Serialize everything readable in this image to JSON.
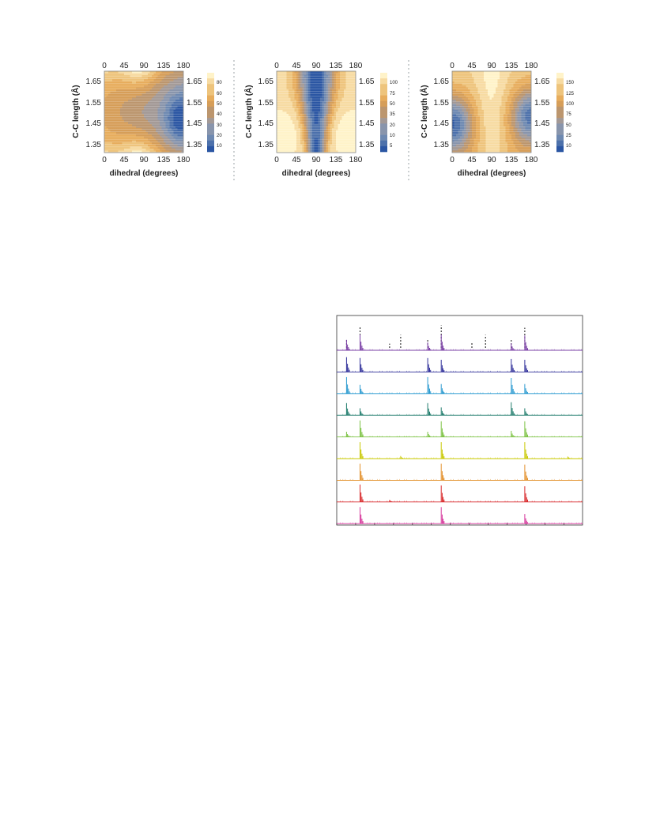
{
  "chart_data": [
    {
      "type": "heatmap",
      "xlabel": "dihedral (degrees)",
      "ylabel": "C-C length (Å)",
      "x_ticks": [
        "0",
        "45",
        "90",
        "135",
        "180"
      ],
      "y_ticks": [
        "1.35",
        "1.45",
        "1.55",
        "1.65"
      ],
      "xlim": [
        0,
        180
      ],
      "ylim": [
        1.31,
        1.69
      ],
      "colorbar_ticks": [
        "80",
        "60",
        "50",
        "40",
        "30",
        "20",
        "10"
      ],
      "colorbar_range": [
        0,
        90
      ],
      "surface": "panel1"
    },
    {
      "type": "heatmap",
      "xlabel": "dihedral (degrees)",
      "ylabel": "C-C length (Å)",
      "x_ticks": [
        "0",
        "45",
        "90",
        "135",
        "180"
      ],
      "y_ticks": [
        "1.35",
        "1.45",
        "1.55",
        "1.65"
      ],
      "xlim": [
        0,
        180
      ],
      "ylim": [
        1.31,
        1.69
      ],
      "colorbar_ticks": [
        "100",
        "75",
        "50",
        "35",
        "20",
        "10",
        "5"
      ],
      "colorbar_range": [
        0,
        110
      ],
      "surface": "panel2"
    },
    {
      "type": "heatmap",
      "xlabel": "dihedral (degrees)",
      "ylabel": "C-C length (Å)",
      "x_ticks": [
        "0",
        "45",
        "90",
        "135",
        "180"
      ],
      "y_ticks": [
        "1.35",
        "1.45",
        "1.55",
        "1.65"
      ],
      "xlim": [
        0,
        180
      ],
      "ylim": [
        1.31,
        1.69
      ],
      "colorbar_ticks": [
        "150",
        "125",
        "100",
        "75",
        "50",
        "25",
        "10"
      ],
      "colorbar_range": [
        0,
        160
      ],
      "surface": "panel3"
    },
    {
      "type": "bar",
      "subtype": "stacked-stick-spectra",
      "n_traces": 9,
      "xlim": [
        0,
        100
      ],
      "reference_peaks": [
        {
          "x": 4.0,
          "h": 0.35
        },
        {
          "x": 9.5,
          "h": 0.9
        },
        {
          "x": 21.5,
          "h": 0.18
        },
        {
          "x": 26.0,
          "h": 0.55
        },
        {
          "x": 37.0,
          "h": 0.4
        },
        {
          "x": 42.5,
          "h": 0.95
        },
        {
          "x": 55.0,
          "h": 0.22
        },
        {
          "x": 60.5,
          "h": 0.55
        },
        {
          "x": 71.0,
          "h": 0.4
        },
        {
          "x": 76.5,
          "h": 0.85
        }
      ],
      "series": [
        {
          "color": "#7a3fa6",
          "peaks": [
            {
              "x": 4,
              "h": 0.6
            },
            {
              "x": 9.5,
              "h": 0.9
            },
            {
              "x": 37,
              "h": 0.45
            },
            {
              "x": 42.5,
              "h": 0.9
            },
            {
              "x": 71,
              "h": 0.4
            },
            {
              "x": 76.5,
              "h": 0.85
            }
          ]
        },
        {
          "color": "#2f2f9a",
          "peaks": [
            {
              "x": 4,
              "h": 0.85
            },
            {
              "x": 9.5,
              "h": 0.8
            },
            {
              "x": 37,
              "h": 0.8
            },
            {
              "x": 42.5,
              "h": 0.7
            },
            {
              "x": 71,
              "h": 0.75
            },
            {
              "x": 76.5,
              "h": 0.7
            }
          ]
        },
        {
          "color": "#2a9ad0",
          "peaks": [
            {
              "x": 4,
              "h": 0.95
            },
            {
              "x": 9.5,
              "h": 0.5
            },
            {
              "x": 37,
              "h": 0.95
            },
            {
              "x": 42.5,
              "h": 0.55
            },
            {
              "x": 71,
              "h": 0.9
            },
            {
              "x": 76.5,
              "h": 0.55
            }
          ]
        },
        {
          "color": "#1e7b6b",
          "peaks": [
            {
              "x": 4,
              "h": 0.7
            },
            {
              "x": 9.5,
              "h": 0.4
            },
            {
              "x": 37,
              "h": 0.7
            },
            {
              "x": 42.5,
              "h": 0.45
            },
            {
              "x": 71,
              "h": 0.75
            },
            {
              "x": 76.5,
              "h": 0.4
            }
          ]
        },
        {
          "color": "#7cc242",
          "peaks": [
            {
              "x": 4,
              "h": 0.3
            },
            {
              "x": 9.5,
              "h": 0.95
            },
            {
              "x": 37,
              "h": 0.3
            },
            {
              "x": 42.5,
              "h": 0.9
            },
            {
              "x": 71,
              "h": 0.35
            },
            {
              "x": 76.5,
              "h": 0.9
            }
          ]
        },
        {
          "color": "#c8c800",
          "peaks": [
            {
              "x": 9.5,
              "h": 0.95
            },
            {
              "x": 26,
              "h": 0.15
            },
            {
              "x": 42.5,
              "h": 0.95
            },
            {
              "x": 76.5,
              "h": 0.95
            },
            {
              "x": 94,
              "h": 0.12
            }
          ]
        },
        {
          "color": "#e3902a",
          "peaks": [
            {
              "x": 9.5,
              "h": 0.95
            },
            {
              "x": 42.5,
              "h": 0.95
            },
            {
              "x": 76.5,
              "h": 0.9
            }
          ]
        },
        {
          "color": "#d8282a",
          "peaks": [
            {
              "x": 9.5,
              "h": 1.0
            },
            {
              "x": 21.5,
              "h": 0.12
            },
            {
              "x": 42.5,
              "h": 0.95
            },
            {
              "x": 76.5,
              "h": 0.9
            }
          ]
        },
        {
          "color": "#d6359b",
          "peaks": [
            {
              "x": 9.5,
              "h": 0.95
            },
            {
              "x": 42.5,
              "h": 0.95
            },
            {
              "x": 76.5,
              "h": 0.55
            }
          ]
        }
      ]
    }
  ],
  "colors": {
    "high": "#fff3c9",
    "mid": "#e3a24e",
    "low": "#2b56a3",
    "divider": "#9aa0a6"
  }
}
